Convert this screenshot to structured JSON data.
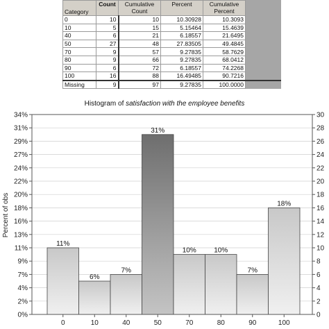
{
  "table": {
    "headers": {
      "category": "Category",
      "count": "Count",
      "cumulative_count": "Cumulative Count",
      "percent": "Percent",
      "cumulative_percent": "Cumulative Percent"
    },
    "rows": [
      {
        "category": "0",
        "count": "10",
        "cum_count": "10",
        "percent": "10.30928",
        "cum_percent": "10.3093"
      },
      {
        "category": "10",
        "count": "5",
        "cum_count": "15",
        "percent": "5.15464",
        "cum_percent": "15.4639"
      },
      {
        "category": "40",
        "count": "6",
        "cum_count": "21",
        "percent": "6.18557",
        "cum_percent": "21.6495"
      },
      {
        "category": "50",
        "count": "27",
        "cum_count": "48",
        "percent": "27.83505",
        "cum_percent": "49.4845"
      },
      {
        "category": "70",
        "count": "9",
        "cum_count": "57",
        "percent": "9.27835",
        "cum_percent": "58.7629"
      },
      {
        "category": "80",
        "count": "9",
        "cum_count": "66",
        "percent": "9.27835",
        "cum_percent": "68.0412"
      },
      {
        "category": "90",
        "count": "6",
        "cum_count": "72",
        "percent": "6.18557",
        "cum_percent": "74.2268"
      },
      {
        "category": "100",
        "count": "16",
        "cum_count": "88",
        "percent": "16.49485",
        "cum_percent": "90.7216"
      }
    ],
    "missing": {
      "category": "Missing",
      "count": "9",
      "cum_count": "97",
      "percent": "9.27835",
      "cum_percent": "100.0000"
    }
  },
  "chart_data": {
    "type": "bar",
    "title_prefix": "Histogram of ",
    "title_italic": "satisfaction with the employee benefits",
    "ylabel": "Percent of obs",
    "categories": [
      "0",
      "10",
      "40",
      "50",
      "70",
      "80",
      "90",
      "100"
    ],
    "counts": [
      10,
      5,
      6,
      27,
      9,
      9,
      6,
      16
    ],
    "bar_labels": [
      "11%",
      "6%",
      "7%",
      "31%",
      "10%",
      "10%",
      "7%",
      "18%"
    ],
    "left_axis_ticks": [
      "0%",
      "2%",
      "4%",
      "7%",
      "9%",
      "11%",
      "13%",
      "16%",
      "18%",
      "20%",
      "22%",
      "24%",
      "27%",
      "29%",
      "31%",
      "34%"
    ],
    "right_axis_ticks": [
      "0",
      "2",
      "4",
      "6",
      "8",
      "10",
      "12",
      "14",
      "16",
      "18",
      "20",
      "22",
      "24",
      "26",
      "28",
      "30"
    ],
    "ylim_count": [
      0,
      30
    ],
    "highlight_category": "50",
    "colors": {
      "bar_light": "#f0f0f0",
      "bar_dark": "#c8c8c8",
      "highlight_light": "#c4c4c4",
      "highlight_dark": "#6e6e6e",
      "grid": "#cfcfcf",
      "frame": "#555555"
    }
  }
}
